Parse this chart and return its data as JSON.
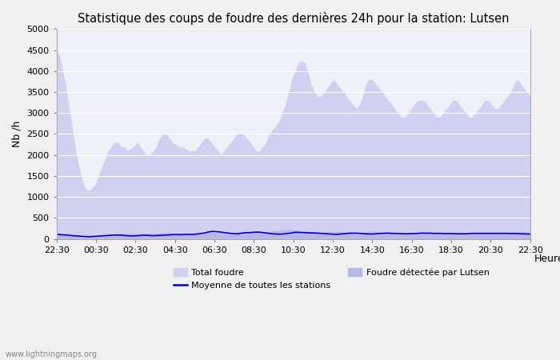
{
  "title": "Statistique des coups de foudre des dernières 24h pour la station: Lutsen",
  "ylabel": "Nb /h",
  "xlabel": "Heure",
  "ylim": [
    0,
    5000
  ],
  "yticks": [
    0,
    500,
    1000,
    1500,
    2000,
    2500,
    3000,
    3500,
    4000,
    4500,
    5000
  ],
  "xtick_labels": [
    "22:30",
    "00:30",
    "02:30",
    "04:30",
    "06:30",
    "08:30",
    "10:30",
    "12:30",
    "14:30",
    "16:30",
    "18:30",
    "20:30",
    "22:30"
  ],
  "bg_color": "#f0f0f0",
  "plot_bg_color": "#f0f0f8",
  "grid_color": "#ffffff",
  "fill_total_color": "#d0d0f0",
  "fill_local_color": "#b8b8e8",
  "line_color": "#0000cc",
  "watermark": "www.lightningmaps.org",
  "legend_total": "Total foudre",
  "legend_local": "Foudre détectée par Lutsen",
  "legend_mean": "Moyenne de toutes les stations",
  "total_foudre": [
    4500,
    4350,
    4000,
    3600,
    3100,
    2600,
    2100,
    1700,
    1400,
    1200,
    1150,
    1200,
    1300,
    1500,
    1700,
    1900,
    2100,
    2200,
    2300,
    2300,
    2200,
    2200,
    2100,
    2150,
    2200,
    2300,
    2200,
    2100,
    2000,
    2000,
    2100,
    2200,
    2400,
    2500,
    2500,
    2400,
    2300,
    2250,
    2200,
    2200,
    2150,
    2100,
    2100,
    2100,
    2200,
    2300,
    2400,
    2400,
    2300,
    2200,
    2100,
    2000,
    2100,
    2200,
    2300,
    2400,
    2500,
    2500,
    2500,
    2400,
    2300,
    2200,
    2100,
    2100,
    2200,
    2300,
    2500,
    2600,
    2700,
    2800,
    3000,
    3200,
    3500,
    3800,
    4000,
    4200,
    4250,
    4200,
    4000,
    3700,
    3500,
    3400,
    3400,
    3500,
    3600,
    3700,
    3800,
    3700,
    3600,
    3500,
    3400,
    3300,
    3200,
    3100,
    3200,
    3400,
    3700,
    3800,
    3800,
    3700,
    3600,
    3500,
    3400,
    3300,
    3200,
    3100,
    3000,
    2900,
    2900,
    3000,
    3100,
    3200,
    3300,
    3300,
    3300,
    3200,
    3100,
    3000,
    2900,
    2900,
    3000,
    3100,
    3200,
    3300,
    3300,
    3200,
    3100,
    3000,
    2900,
    2900,
    3000,
    3100,
    3200,
    3300,
    3300,
    3200,
    3100,
    3100,
    3200,
    3300,
    3400,
    3500,
    3700,
    3800,
    3700,
    3600,
    3500,
    3400
  ],
  "local_foudre": [
    150,
    140,
    130,
    120,
    110,
    100,
    90,
    85,
    80,
    75,
    70,
    75,
    80,
    85,
    90,
    95,
    100,
    110,
    120,
    125,
    130,
    130,
    125,
    120,
    120,
    125,
    130,
    130,
    125,
    120,
    120,
    130,
    140,
    150,
    155,
    150,
    145,
    140,
    135,
    130,
    130,
    125,
    120,
    120,
    125,
    130,
    140,
    150,
    160,
    155,
    150,
    145,
    140,
    140,
    145,
    150,
    160,
    170,
    175,
    170,
    165,
    160,
    155,
    155,
    160,
    165,
    175,
    185,
    195,
    200,
    210,
    215,
    220,
    215,
    210,
    200,
    190,
    180,
    175,
    165,
    160,
    155,
    155,
    160,
    170,
    175,
    180,
    175,
    165,
    155,
    150,
    145,
    140,
    140,
    145,
    155,
    170,
    180,
    180,
    175,
    165,
    155,
    145,
    140,
    135,
    130,
    125,
    125,
    130,
    140,
    150,
    155,
    160,
    160,
    155,
    145,
    140,
    135,
    130,
    130,
    135,
    140,
    150,
    155,
    155,
    145,
    140,
    135,
    130,
    130,
    135,
    145,
    150,
    155,
    155,
    145,
    140,
    140,
    145,
    150,
    155,
    160,
    170,
    175,
    170,
    165,
    155,
    145
  ],
  "mean_foudre": [
    110,
    100,
    95,
    90,
    85,
    75,
    70,
    65,
    60,
    55,
    50,
    55,
    60,
    65,
    70,
    75,
    80,
    85,
    90,
    90,
    85,
    80,
    75,
    70,
    70,
    75,
    80,
    85,
    85,
    80,
    75,
    80,
    80,
    85,
    90,
    95,
    100,
    100,
    100,
    100,
    105,
    105,
    105,
    110,
    120,
    130,
    140,
    160,
    175,
    175,
    170,
    160,
    150,
    140,
    130,
    125,
    115,
    130,
    140,
    145,
    150,
    155,
    160,
    160,
    150,
    140,
    130,
    120,
    115,
    110,
    115,
    120,
    130,
    140,
    155,
    155,
    150,
    150,
    145,
    140,
    140,
    135,
    130,
    125,
    120,
    115,
    110,
    105,
    115,
    120,
    130,
    135,
    135,
    135,
    130,
    125,
    120,
    115,
    115,
    120,
    125,
    130,
    135,
    135,
    130,
    130,
    125,
    125,
    120,
    120,
    125,
    125,
    130,
    135,
    135,
    135,
    135,
    130,
    130,
    130,
    125,
    125,
    125,
    125,
    120,
    120,
    120,
    120,
    125,
    130,
    130,
    130,
    130,
    130,
    130,
    130,
    130,
    130,
    130,
    130,
    130,
    125,
    125,
    125,
    120,
    120,
    115,
    115
  ]
}
